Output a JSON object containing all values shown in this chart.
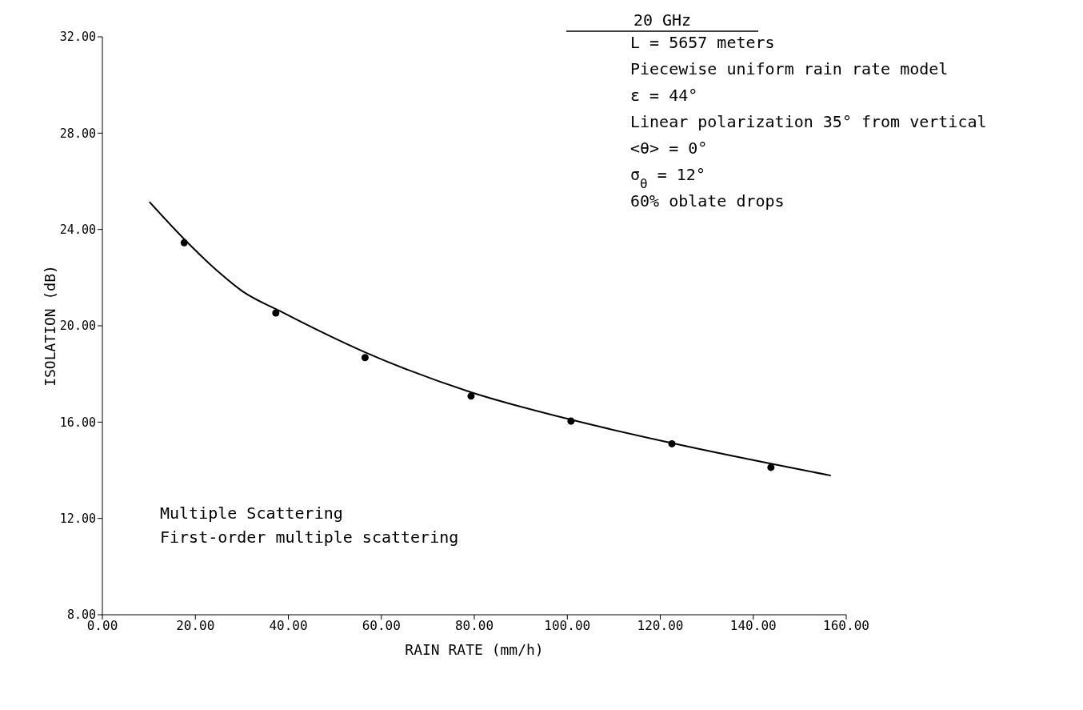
{
  "chart_data": {
    "type": "scatter",
    "title": "20 GHz",
    "xlabel": "RAIN RATE (mm/h)",
    "ylabel": "ISOLATION (dB)",
    "xlim": [
      0,
      160
    ],
    "xticks": [
      {
        "value": 0,
        "label": "0.00"
      },
      {
        "value": 20,
        "label": "20.00"
      },
      {
        "value": 40,
        "label": "40.00"
      },
      {
        "value": 60,
        "label": "60.00"
      },
      {
        "value": 80,
        "label": "80.00"
      },
      {
        "value": 100,
        "label": "100.00"
      },
      {
        "value": 120,
        "label": "120.00"
      },
      {
        "value": 140,
        "label": "140.00"
      },
      {
        "value": 160,
        "label": "160.00"
      }
    ],
    "ylim": [
      8,
      32
    ],
    "yticks": [
      {
        "value": 8,
        "label": "8.00"
      },
      {
        "value": 12,
        "label": "12.00"
      },
      {
        "value": 16,
        "label": "16.00"
      },
      {
        "value": 20,
        "label": "20.00"
      },
      {
        "value": 24,
        "label": "24.00"
      },
      {
        "value": 28,
        "label": "28.00"
      },
      {
        "value": 32,
        "label": "32.00"
      }
    ],
    "grid": false,
    "series": [
      {
        "color": "#000000",
        "marker": "circle",
        "x": [
          17.6,
          37.3,
          56.5,
          79.3,
          100.8,
          122.5,
          143.8
        ],
        "values": [
          23.45,
          20.53,
          18.68,
          17.08,
          16.04,
          15.1,
          14.12
        ]
      },
      {
        "type": "line",
        "color": "#000000",
        "marker": "none",
        "line_style": "solid",
        "x": [
          10.1,
          17.6,
          25.2,
          30,
          38.3,
          56.5,
          79,
          100.8,
          122.5,
          156.7
        ],
        "values": [
          25.15,
          23.6,
          22.2,
          21.45,
          20.6,
          18.9,
          17.26,
          16.1,
          15.13,
          13.78
        ]
      }
    ],
    "annotations": [
      "L = 5657 meters",
      "Piecewise uniform rain rate model",
      "ε = 44°",
      "Linear polarization 35° from vertical",
      "<θ> = 0°",
      "σ$_{θ}$ = 12°",
      "60% oblate drops",
      "Multiple Scattering",
      "First-order multiple scattering"
    ]
  }
}
